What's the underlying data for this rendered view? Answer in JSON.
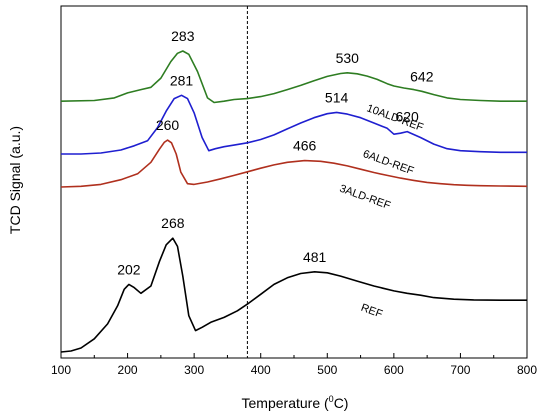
{
  "chart_data": {
    "type": "line",
    "xlabel": "Temperature (°C)",
    "xlabel_parts": {
      "pre": "Temperature (",
      "sup": "0",
      "post": "C)"
    },
    "ylabel": "TCD Signal (a.u.)",
    "xlim": [
      100,
      800
    ],
    "ylim": [
      0,
      1
    ],
    "x_ticks": [
      100,
      200,
      300,
      400,
      500,
      600,
      700,
      800
    ],
    "y_ticks_labeled": false,
    "grid": false,
    "reference_line": {
      "x": 380,
      "style": "dashed"
    },
    "series": [
      {
        "name": "10ALD-REF",
        "color": "#2e7d22",
        "x": [
          100,
          150,
          180,
          200,
          220,
          235,
          250,
          265,
          275,
          283,
          292,
          305,
          320,
          330,
          345,
          360,
          380,
          400,
          420,
          440,
          460,
          480,
          500,
          520,
          530,
          545,
          560,
          575,
          590,
          600,
          615,
          630,
          642,
          660,
          680,
          700,
          730,
          760,
          800
        ],
        "y": [
          0.76,
          0.762,
          0.77,
          0.785,
          0.795,
          0.802,
          0.83,
          0.88,
          0.905,
          0.912,
          0.902,
          0.85,
          0.77,
          0.756,
          0.76,
          0.765,
          0.768,
          0.774,
          0.783,
          0.795,
          0.808,
          0.822,
          0.835,
          0.844,
          0.846,
          0.843,
          0.836,
          0.826,
          0.813,
          0.806,
          0.8,
          0.795,
          0.79,
          0.78,
          0.77,
          0.765,
          0.762,
          0.76,
          0.76
        ]
      },
      {
        "name": "6ALD-REF",
        "color": "#1f1fd0",
        "x": [
          100,
          130,
          160,
          190,
          210,
          230,
          245,
          258,
          270,
          281,
          290,
          300,
          312,
          322,
          332,
          345,
          360,
          380,
          400,
          420,
          440,
          460,
          480,
          500,
          514,
          530,
          550,
          570,
          590,
          600,
          610,
          620,
          640,
          660,
          680,
          700,
          730,
          760,
          800
        ],
        "y": [
          0.6,
          0.6,
          0.603,
          0.612,
          0.625,
          0.64,
          0.68,
          0.73,
          0.768,
          0.778,
          0.768,
          0.725,
          0.65,
          0.61,
          0.616,
          0.622,
          0.627,
          0.634,
          0.644,
          0.658,
          0.676,
          0.694,
          0.71,
          0.722,
          0.726,
          0.721,
          0.71,
          0.694,
          0.678,
          0.66,
          0.663,
          0.668,
          0.65,
          0.63,
          0.616,
          0.61,
          0.607,
          0.605,
          0.605
        ]
      },
      {
        "name": "3ALD-REF",
        "color": "#b0301e",
        "x": [
          100,
          130,
          160,
          190,
          215,
          235,
          248,
          255,
          260,
          266,
          273,
          280,
          290,
          300,
          320,
          340,
          360,
          380,
          400,
          420,
          440,
          466,
          490,
          510,
          530,
          550,
          570,
          590,
          610,
          630,
          650,
          670,
          690,
          710,
          730,
          760,
          800
        ],
        "y": [
          0.5,
          0.502,
          0.508,
          0.522,
          0.54,
          0.575,
          0.615,
          0.635,
          0.642,
          0.634,
          0.6,
          0.545,
          0.51,
          0.508,
          0.515,
          0.525,
          0.535,
          0.546,
          0.557,
          0.567,
          0.575,
          0.58,
          0.578,
          0.572,
          0.564,
          0.554,
          0.544,
          0.535,
          0.527,
          0.52,
          0.514,
          0.51,
          0.507,
          0.505,
          0.504,
          0.503,
          0.502
        ]
      },
      {
        "name": "REF",
        "color": "#000000",
        "x": [
          100,
          115,
          130,
          150,
          170,
          185,
          195,
          202,
          210,
          220,
          235,
          248,
          258,
          268,
          275,
          283,
          292,
          302,
          312,
          325,
          345,
          365,
          380,
          400,
          420,
          440,
          460,
          481,
          500,
          520,
          545,
          570,
          600,
          620,
          640,
          660,
          690,
          720,
          760,
          800
        ],
        "y": [
          0.0,
          0.003,
          0.012,
          0.04,
          0.085,
          0.14,
          0.19,
          0.205,
          0.195,
          0.178,
          0.2,
          0.275,
          0.325,
          0.345,
          0.32,
          0.23,
          0.11,
          0.065,
          0.075,
          0.09,
          0.105,
          0.125,
          0.145,
          0.175,
          0.205,
          0.225,
          0.238,
          0.243,
          0.24,
          0.23,
          0.215,
          0.2,
          0.185,
          0.178,
          0.172,
          0.165,
          0.16,
          0.158,
          0.157,
          0.157
        ]
      }
    ],
    "annotations": [
      {
        "text": "283",
        "x": 283,
        "series": 0
      },
      {
        "text": "530",
        "x": 530,
        "series": 0
      },
      {
        "text": "642",
        "x": 642,
        "series": 0
      },
      {
        "text": "281",
        "x": 281,
        "series": 1
      },
      {
        "text": "514",
        "x": 514,
        "series": 1
      },
      {
        "text": "620",
        "x": 620,
        "series": 1
      },
      {
        "text": "260",
        "x": 260,
        "series": 2
      },
      {
        "text": "466",
        "x": 466,
        "series": 2
      },
      {
        "text": "202",
        "x": 202,
        "series": 3
      },
      {
        "text": "268",
        "x": 268,
        "series": 3
      },
      {
        "text": "481",
        "x": 481,
        "series": 3
      }
    ],
    "series_labels": [
      {
        "text": "10ALD-REF",
        "series": 0
      },
      {
        "text": "6ALD-REF",
        "series": 1
      },
      {
        "text": "3ALD-REF",
        "series": 2
      },
      {
        "text": "REF",
        "series": 3
      }
    ]
  }
}
